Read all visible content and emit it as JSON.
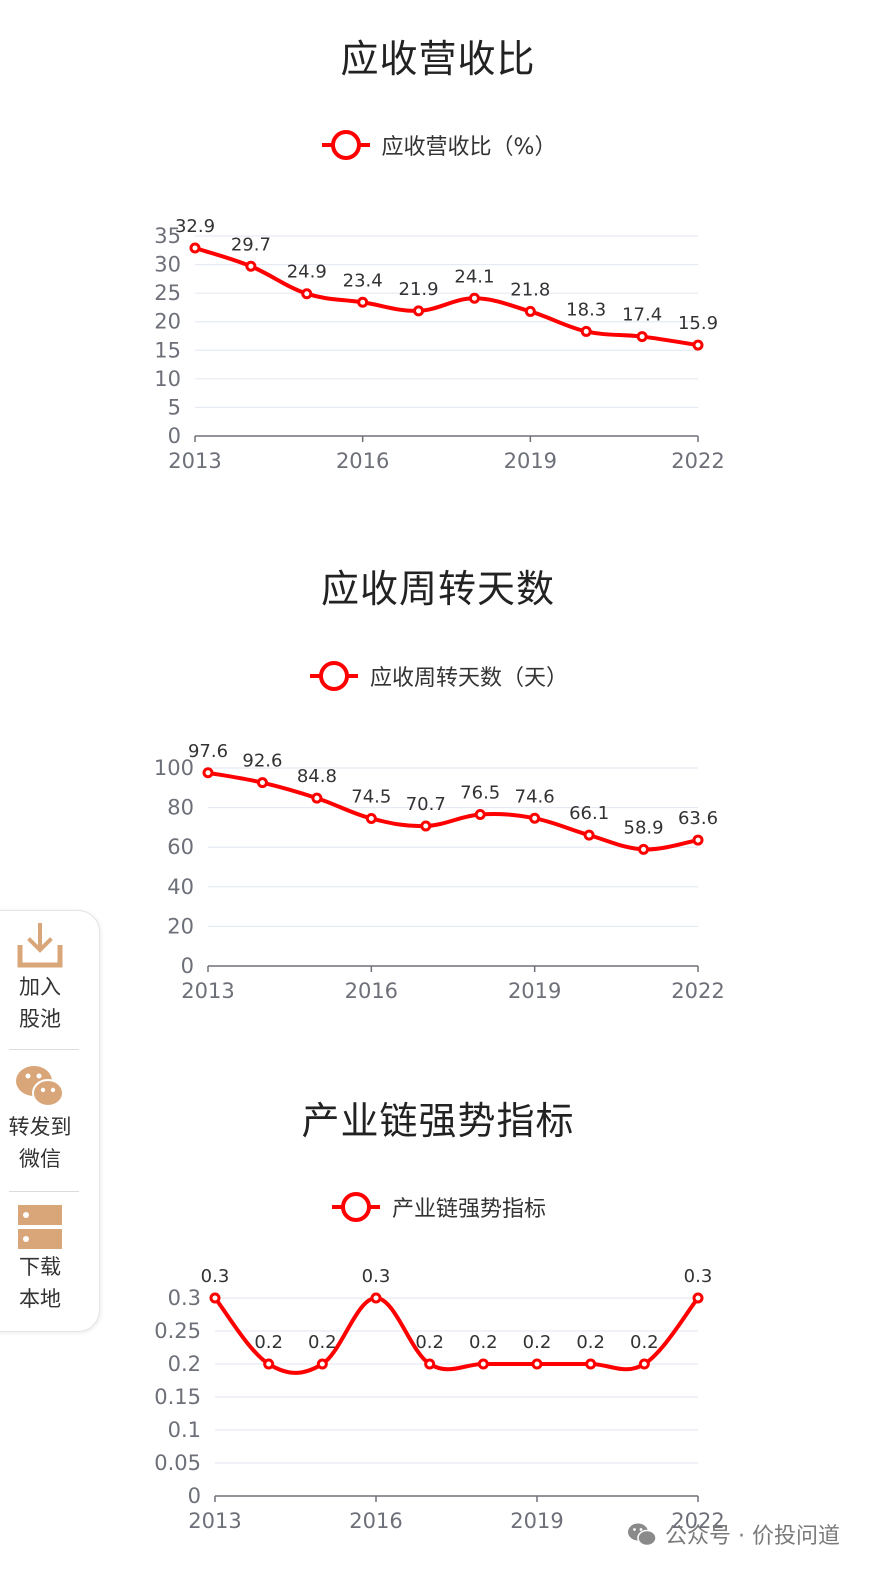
{
  "charts": [
    {
      "title": "应收营收比",
      "legend": "应收营收比（%）",
      "chart_data": {
        "type": "line",
        "smooth": true,
        "x": [
          "2013",
          "2014",
          "2015",
          "2016",
          "2017",
          "2018",
          "2019",
          "2020",
          "2021",
          "2022"
        ],
        "x_ticks": [
          "2013",
          "2016",
          "2019",
          "2022"
        ],
        "series": [
          {
            "name": "应收营收比（%）",
            "values": [
              32.9,
              29.7,
              24.9,
              23.4,
              21.9,
              24.1,
              21.8,
              18.3,
              17.4,
              15.9
            ]
          }
        ],
        "labels": [
          "32.9",
          "29.7",
          "24.9",
          "23.4",
          "21.9",
          "24.1",
          "21.8",
          "18.3",
          "17.4",
          "15.9"
        ],
        "ylim": [
          0,
          35
        ],
        "y_ticks": [
          "0",
          "5",
          "10",
          "15",
          "20",
          "25",
          "30",
          "35"
        ],
        "color": "#ff0000",
        "grid": true
      }
    },
    {
      "title": "应收周转天数",
      "legend": "应收周转天数（天）",
      "chart_data": {
        "type": "line",
        "smooth": true,
        "x": [
          "2013",
          "2014",
          "2015",
          "2016",
          "2017",
          "2018",
          "2019",
          "2020",
          "2021",
          "2022"
        ],
        "x_ticks": [
          "2013",
          "2016",
          "2019",
          "2022"
        ],
        "series": [
          {
            "name": "应收周转天数（天）",
            "values": [
              97.6,
              92.6,
              84.8,
              74.5,
              70.7,
              76.5,
              74.6,
              66.1,
              58.9,
              63.6
            ]
          }
        ],
        "labels": [
          "97.6",
          "92.6",
          "84.8",
          "74.5",
          "70.7",
          "76.5",
          "74.6",
          "66.1",
          "58.9",
          "63.6"
        ],
        "ylim": [
          0,
          100
        ],
        "y_ticks": [
          "0",
          "20",
          "40",
          "60",
          "80",
          "100"
        ],
        "color": "#ff0000",
        "grid": true
      }
    },
    {
      "title": "产业链强势指标",
      "legend": "产业链强势指标",
      "chart_data": {
        "type": "line",
        "smooth": true,
        "x": [
          "2013",
          "2014",
          "2015",
          "2016",
          "2017",
          "2018",
          "2019",
          "2020",
          "2021",
          "2022"
        ],
        "x_ticks": [
          "2013",
          "2016",
          "2019",
          "2022"
        ],
        "series": [
          {
            "name": "产业链强势指标",
            "values": [
              0.3,
              0.2,
              0.2,
              0.3,
              0.2,
              0.2,
              0.2,
              0.2,
              0.2,
              0.3
            ]
          }
        ],
        "labels": [
          "0.3",
          "0.2",
          "0.2",
          "0.3",
          "0.2",
          "0.2",
          "0.2",
          "0.2",
          "0.2",
          "0.3"
        ],
        "ylim": [
          0,
          0.3
        ],
        "y_ticks": [
          "0",
          "0.05",
          "0.1",
          "0.15",
          "0.2",
          "0.25",
          "0.3"
        ],
        "color": "#ff0000",
        "grid": true
      }
    }
  ],
  "sidebar": {
    "items": [
      {
        "icon": "download-icon",
        "label": "加入\n股池"
      },
      {
        "icon": "wechat-icon",
        "label": "转发到\n微信"
      },
      {
        "icon": "server-icon",
        "label": "下载\n本地"
      }
    ],
    "icon_color": "#d9a67a"
  },
  "watermark": {
    "text": "公众号 · 价投问道"
  }
}
